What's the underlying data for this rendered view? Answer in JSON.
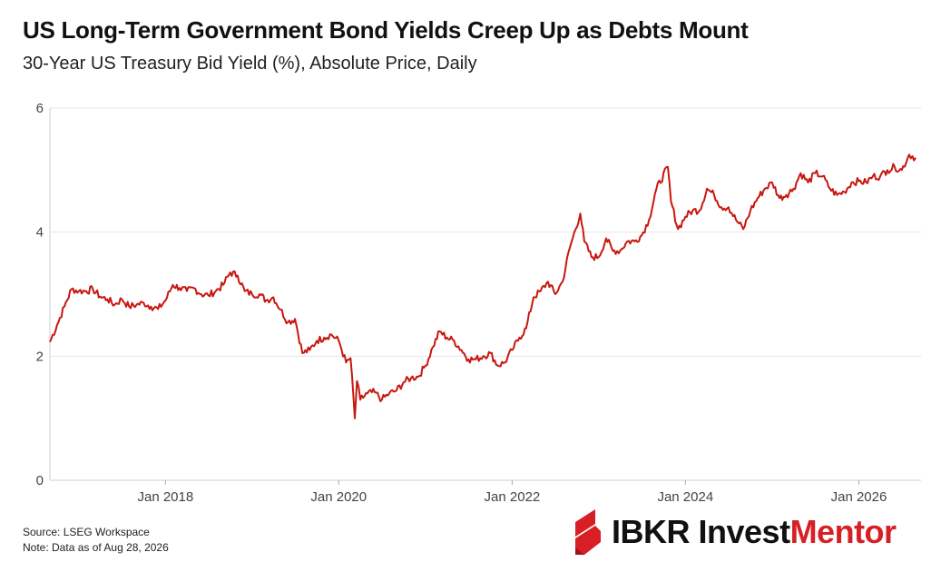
{
  "title": "US Long-Term Government Bond Yields Creep Up as Debts Mount",
  "subtitle": "30-Year US Treasury Bid Yield (%), Absolute Price, Daily",
  "footer": {
    "source": "Source: LSEG Workspace",
    "note": "Note: Data as of Aug 28, 2026"
  },
  "brand": {
    "ibkr": "IBKR",
    "invest": "Invest",
    "mentor": "Mentor",
    "accent_color": "#d81f26"
  },
  "chart_data": {
    "type": "line",
    "ylim": [
      0,
      6
    ],
    "xlim": [
      "2016-09-01",
      "2026-09-20"
    ],
    "y_ticks": [
      0,
      2,
      4,
      6
    ],
    "x_ticks": [
      {
        "date": "2018-01-01",
        "label": "Jan 2018"
      },
      {
        "date": "2020-01-01",
        "label": "Jan 2020"
      },
      {
        "date": "2022-01-01",
        "label": "Jan 2022"
      },
      {
        "date": "2024-01-01",
        "label": "Jan 2024"
      },
      {
        "date": "2026-01-01",
        "label": "Jan 2026"
      }
    ],
    "grid": true,
    "line_color": "#c8170f",
    "series": [
      {
        "x": [
          "2016-09-01",
          "2016-10-01",
          "2016-11-01",
          "2016-12-01",
          "2017-01-01",
          "2017-02-01",
          "2017-03-01",
          "2017-04-01",
          "2017-05-01",
          "2017-06-01",
          "2017-07-01",
          "2017-08-01",
          "2017-09-01",
          "2017-10-01",
          "2017-11-01",
          "2017-12-01",
          "2018-01-01",
          "2018-02-01",
          "2018-03-01",
          "2018-04-01",
          "2018-05-01",
          "2018-06-01",
          "2018-07-01",
          "2018-08-01",
          "2018-09-01",
          "2018-10-01",
          "2018-11-01",
          "2018-12-01",
          "2019-01-01",
          "2019-02-01",
          "2019-03-01",
          "2019-04-01",
          "2019-05-01",
          "2019-06-01",
          "2019-07-01",
          "2019-08-01",
          "2019-09-01",
          "2019-10-01",
          "2019-11-01",
          "2019-12-01",
          "2020-01-01",
          "2020-02-01",
          "2020-02-20",
          "2020-03-09",
          "2020-03-18",
          "2020-04-01",
          "2020-05-01",
          "2020-06-01",
          "2020-07-01",
          "2020-08-01",
          "2020-09-01",
          "2020-10-01",
          "2020-11-01",
          "2020-12-01",
          "2021-01-01",
          "2021-02-01",
          "2021-03-01",
          "2021-04-01",
          "2021-05-01",
          "2021-06-01",
          "2021-07-01",
          "2021-08-01",
          "2021-09-01",
          "2021-10-01",
          "2021-11-01",
          "2021-12-01",
          "2022-01-01",
          "2022-02-01",
          "2022-03-01",
          "2022-04-01",
          "2022-05-01",
          "2022-06-01",
          "2022-07-01",
          "2022-08-01",
          "2022-09-01",
          "2022-10-15",
          "2022-11-01",
          "2022-12-01",
          "2023-01-01",
          "2023-02-01",
          "2023-03-01",
          "2023-04-01",
          "2023-05-01",
          "2023-06-01",
          "2023-07-01",
          "2023-08-01",
          "2023-09-01",
          "2023-10-19",
          "2023-11-01",
          "2023-12-01",
          "2024-01-01",
          "2024-02-01",
          "2024-03-01",
          "2024-04-01",
          "2024-05-01",
          "2024-06-01",
          "2024-07-01",
          "2024-08-01",
          "2024-09-01",
          "2024-10-01",
          "2024-11-01",
          "2024-12-01",
          "2025-01-01",
          "2025-02-01",
          "2025-03-01",
          "2025-04-01",
          "2025-05-01",
          "2025-06-01",
          "2025-07-01",
          "2025-08-01",
          "2025-09-01",
          "2025-10-01",
          "2025-11-01",
          "2025-12-01",
          "2026-01-01",
          "2026-02-01",
          "2026-03-01",
          "2026-04-01",
          "2026-05-01",
          "2026-06-01",
          "2026-07-01",
          "2026-08-01",
          "2026-08-28"
        ],
        "y": [
          2.23,
          2.5,
          2.8,
          3.08,
          3.05,
          3.05,
          3.08,
          2.96,
          2.92,
          2.83,
          2.92,
          2.8,
          2.83,
          2.86,
          2.8,
          2.76,
          2.9,
          3.15,
          3.1,
          3.05,
          3.1,
          3.0,
          2.98,
          3.05,
          3.15,
          3.35,
          3.3,
          3.05,
          3.0,
          3.0,
          2.9,
          2.95,
          2.75,
          2.55,
          2.6,
          2.05,
          2.1,
          2.25,
          2.3,
          2.35,
          2.25,
          1.9,
          1.97,
          1.0,
          1.6,
          1.3,
          1.4,
          1.42,
          1.3,
          1.4,
          1.45,
          1.58,
          1.65,
          1.67,
          1.85,
          2.15,
          2.4,
          2.3,
          2.25,
          2.1,
          1.95,
          1.95,
          2.0,
          2.05,
          1.85,
          1.9,
          2.1,
          2.3,
          2.45,
          2.95,
          3.05,
          3.2,
          3.0,
          3.2,
          3.75,
          4.3,
          3.85,
          3.6,
          3.6,
          3.9,
          3.7,
          3.7,
          3.85,
          3.85,
          3.95,
          4.2,
          4.7,
          5.05,
          4.5,
          4.05,
          4.25,
          4.35,
          4.35,
          4.7,
          4.6,
          4.4,
          4.4,
          4.2,
          4.05,
          4.35,
          4.55,
          4.7,
          4.8,
          4.55,
          4.6,
          4.7,
          4.95,
          4.8,
          4.95,
          4.9,
          4.7,
          4.6,
          4.65,
          4.8,
          4.82,
          4.8,
          4.9,
          4.9,
          5.0,
          5.05,
          5.0,
          5.25,
          5.2
        ]
      }
    ]
  }
}
